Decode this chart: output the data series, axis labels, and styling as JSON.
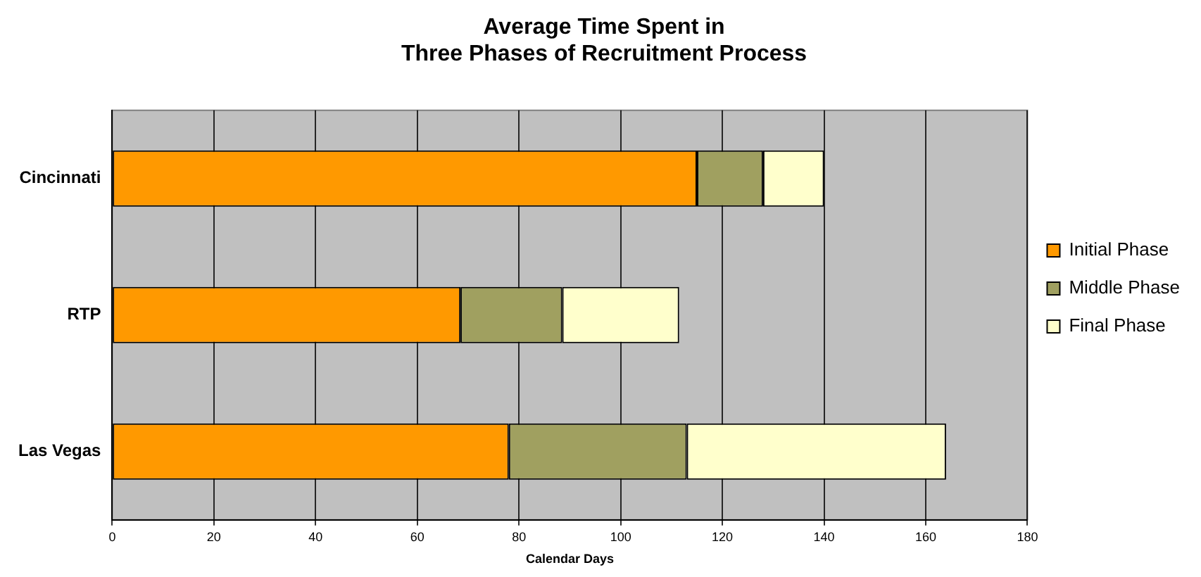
{
  "chart_data": {
    "type": "bar",
    "orientation": "horizontal",
    "stacked": true,
    "title": "Average Time Spent in\nThree Phases of Recruitment Process",
    "xlabel": "Calendar Days",
    "categories": [
      "Cincinnati",
      "RTP",
      "Las Vegas"
    ],
    "series": [
      {
        "name": "Initial Phase",
        "color": "#ff9900",
        "values": [
          115,
          68.5,
          78
        ]
      },
      {
        "name": "Middle Phase",
        "color": "#a0a060",
        "values": [
          13,
          20,
          35
        ]
      },
      {
        "name": "Final Phase",
        "color": "#ffffcc",
        "values": [
          12,
          23,
          51
        ]
      }
    ],
    "xlim": [
      0,
      180
    ],
    "xticks": [
      0,
      20,
      40,
      60,
      80,
      100,
      120,
      140,
      160,
      180
    ],
    "grid": "x",
    "legend": "right"
  }
}
